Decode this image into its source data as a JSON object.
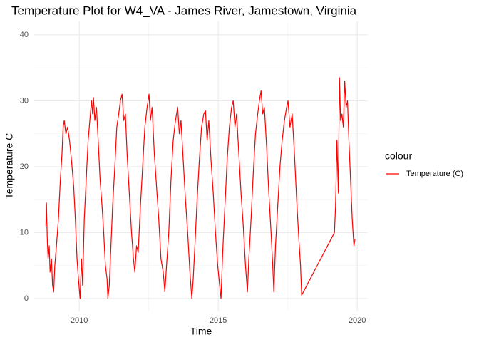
{
  "chart_data": {
    "type": "line",
    "title": "Temperature Plot for W4_VA - James River, Jamestown, Virginia",
    "x_label": "Time",
    "y_label": "Temperature C",
    "legend_title": "colour",
    "x": [
      2008.8,
      2008.82,
      2008.85,
      2008.88,
      2008.92,
      2008.95,
      2009.0,
      2009.04,
      2009.08,
      2009.12,
      2009.18,
      2009.25,
      2009.32,
      2009.38,
      2009.42,
      2009.46,
      2009.52,
      2009.58,
      2009.65,
      2009.72,
      2009.8,
      2009.86,
      2009.92,
      2009.97,
      2010.03,
      2010.08,
      2010.12,
      2010.18,
      2010.25,
      2010.32,
      2010.38,
      2010.44,
      2010.48,
      2010.51,
      2010.56,
      2010.62,
      2010.68,
      2010.75,
      2010.82,
      2010.88,
      2010.94,
      2011.0,
      2011.03,
      2011.08,
      2011.14,
      2011.2,
      2011.28,
      2011.35,
      2011.42,
      2011.48,
      2011.54,
      2011.6,
      2011.66,
      2011.72,
      2011.8,
      2011.88,
      2011.95,
      2012.0,
      2012.06,
      2012.12,
      2012.2,
      2012.28,
      2012.36,
      2012.44,
      2012.51,
      2012.56,
      2012.62,
      2012.7,
      2012.78,
      2012.86,
      2012.94,
      2013.02,
      2013.08,
      2013.14,
      2013.22,
      2013.3,
      2013.38,
      2013.46,
      2013.54,
      2013.6,
      2013.66,
      2013.74,
      2013.82,
      2013.9,
      2013.98,
      2014.05,
      2014.1,
      2014.16,
      2014.24,
      2014.32,
      2014.4,
      2014.48,
      2014.54,
      2014.6,
      2014.66,
      2014.74,
      2014.82,
      2014.9,
      2014.98,
      2015.05,
      2015.1,
      2015.16,
      2015.24,
      2015.32,
      2015.4,
      2015.48,
      2015.54,
      2015.6,
      2015.66,
      2015.74,
      2015.82,
      2015.9,
      2015.98,
      2016.05,
      2016.1,
      2016.18,
      2016.26,
      2016.34,
      2016.42,
      2016.48,
      2016.54,
      2016.6,
      2016.66,
      2016.74,
      2016.82,
      2016.9,
      2016.96,
      2017.0,
      2017.06,
      2017.14,
      2017.22,
      2017.3,
      2017.38,
      2017.46,
      2017.51,
      2017.58,
      2017.66,
      2017.74,
      2017.82,
      2017.9,
      2017.96,
      2018.0,
      2019.18,
      2019.22,
      2019.27,
      2019.32,
      2019.36,
      2019.4,
      2019.45,
      2019.5,
      2019.55,
      2019.6,
      2019.65,
      2019.7,
      2019.76,
      2019.82,
      2019.88,
      2019.92
    ],
    "series": [
      {
        "name": "Temperature (C)",
        "color": "#ff0000",
        "values": [
          11,
          14.5,
          9,
          6,
          8,
          4,
          6,
          2,
          1,
          5,
          8,
          12,
          18,
          22,
          26,
          27,
          25,
          26,
          24,
          21,
          17,
          12,
          6,
          3,
          0,
          6,
          2,
          12,
          18,
          24,
          27,
          30,
          28,
          30.5,
          27,
          29,
          24,
          18,
          14,
          10,
          5,
          3,
          0,
          2,
          8,
          14,
          20,
          26,
          28,
          30,
          31,
          27,
          28,
          22,
          16,
          10,
          6,
          4,
          8,
          7,
          14,
          20,
          26,
          29,
          31,
          27,
          29,
          22,
          17,
          12,
          6,
          4,
          1,
          5,
          10,
          18,
          24,
          27,
          29,
          25,
          27,
          21,
          15,
          10,
          4,
          0,
          3,
          8,
          15,
          21,
          26,
          28,
          28.5,
          24,
          27,
          21,
          16,
          10,
          5,
          2,
          0,
          7,
          14,
          21,
          26,
          29,
          30,
          26,
          28,
          22,
          16,
          11,
          5,
          1,
          6,
          12,
          19,
          25,
          28,
          30,
          31.5,
          28,
          29,
          23,
          16,
          10,
          5,
          1,
          8,
          14,
          20,
          24,
          27,
          29,
          30,
          26,
          28,
          22,
          15,
          9,
          5,
          0.5,
          10,
          14,
          24,
          16,
          33.5,
          27,
          28,
          26,
          33,
          29,
          30,
          24,
          18,
          12,
          8,
          9
        ]
      }
    ],
    "xlim": [
      2008.38,
      2020.38
    ],
    "xticks": [
      2010,
      2015,
      2020
    ],
    "ylim": [
      -1.95,
      42.05
    ],
    "yticks": [
      0,
      10,
      20,
      30,
      40
    ],
    "grid": true
  }
}
